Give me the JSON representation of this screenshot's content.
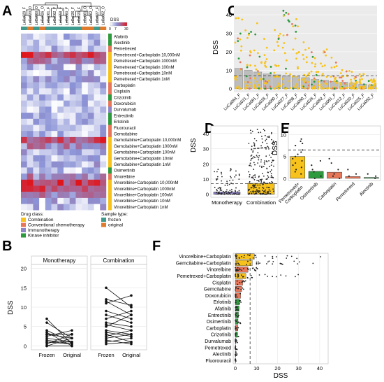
{
  "panel_letters": {
    "a": "A",
    "b": "B",
    "c": "C",
    "d": "D",
    "e": "E",
    "f": "F"
  },
  "colors": {
    "combination": "#f7c21b",
    "conventional": "#e8775a",
    "immunotherapy": "#8f86c8",
    "kinase": "#2e9a3e",
    "frozen": "#3d9a8c",
    "original": "#e07b2e",
    "heat_low": "#ffffff",
    "heat_mid": "#8b93d6",
    "heat_high": "#e0151c",
    "bar_gray": "#bdbdbd",
    "panel_bg": "#ebebeb"
  },
  "panel_a": {
    "samples": [
      "LuCa029_F",
      "LuCa020_O",
      "LuCa060_O",
      "LuCa026_O",
      "LuCa061_F",
      "LuCa062_F",
      "LuCa058_F",
      "LuCa060_F",
      "LuCa026_F",
      "LuCa021_F",
      "LuCa061_O",
      "LuCa062_O",
      "LuCa027_F",
      "LuCa062_O"
    ],
    "sample_types": [
      "frozen",
      "original",
      "frozen",
      "original",
      "frozen",
      "frozen",
      "frozen",
      "frozen",
      "frozen",
      "frozen",
      "original",
      "original",
      "frozen",
      "original"
    ],
    "legend_title": "DSS",
    "legend_ticks": [
      "0",
      "7",
      "30"
    ],
    "drugs": [
      {
        "name": "Afatinib",
        "class": "kinase"
      },
      {
        "name": "Alectinib",
        "class": "kinase"
      },
      {
        "name": "Pemetrexed",
        "class": "conventional"
      },
      {
        "name": "Pemetrexed+Carboplatin 10,000nM",
        "class": "combination"
      },
      {
        "name": "Pemetrexed+Carboplatin 1000nM",
        "class": "combination"
      },
      {
        "name": "Pemetrexed+Carboplatin 100nM",
        "class": "combination"
      },
      {
        "name": "Pemetrexed+Carboplatin 10nM",
        "class": "combination"
      },
      {
        "name": "Pemetrexed+Carboplatin 1nM",
        "class": "combination"
      },
      {
        "name": "Carboplatin",
        "class": "conventional"
      },
      {
        "name": "Cisplatin",
        "class": "conventional"
      },
      {
        "name": "Crizotinib",
        "class": "kinase"
      },
      {
        "name": "Doxorubicin",
        "class": "conventional"
      },
      {
        "name": "Durvalumab",
        "class": "immunotherapy"
      },
      {
        "name": "Entrectinib",
        "class": "kinase"
      },
      {
        "name": "Erlotinib",
        "class": "kinase"
      },
      {
        "name": "Fluorouracil",
        "class": "conventional"
      },
      {
        "name": "Gemcitabine",
        "class": "conventional"
      },
      {
        "name": "Gemcitabine+Carboplatin 10,000nM",
        "class": "combination"
      },
      {
        "name": "Gemcitabine+Carboplatin 1000nM",
        "class": "combination"
      },
      {
        "name": "Gemcitabine+Carboplatin 100nM",
        "class": "combination"
      },
      {
        "name": "Gemcitabine+Carboplatin 10nM",
        "class": "combination"
      },
      {
        "name": "Gemcitabine+Carboplatin 1nM",
        "class": "combination"
      },
      {
        "name": "Osimertinib",
        "class": "kinase"
      },
      {
        "name": "Vinorelbine",
        "class": "conventional"
      },
      {
        "name": "Vinorelbine+Carboplatin 10,000nM",
        "class": "combination"
      },
      {
        "name": "Vinorelbine+Carboplatin 1000nM",
        "class": "combination"
      },
      {
        "name": "Vinorelbine+Carboplatin 100nM",
        "class": "combination"
      },
      {
        "name": "Vinorelbine+Carboplatin 10nM",
        "class": "combination"
      },
      {
        "name": "Vinorelbine+Carboplatin 1nM",
        "class": "combination"
      }
    ],
    "drug_class_title": "Drug class:",
    "drug_classes": [
      {
        "key": "combination",
        "label": "Combination"
      },
      {
        "key": "conventional",
        "label": "Conventional chemotherapy"
      },
      {
        "key": "immunotherapy",
        "label": "Immunotherapy"
      },
      {
        "key": "kinase",
        "label": "Kinase inhibitor"
      }
    ],
    "sample_type_title": "Sample type:",
    "sample_type_labels": [
      {
        "key": "frozen",
        "label": "frozen"
      },
      {
        "key": "original",
        "label": "original"
      }
    ]
  },
  "panel_b": {
    "ylabel": "DSS",
    "ylim": [
      -1,
      21
    ],
    "yticks": [
      0,
      5,
      10,
      15,
      20
    ],
    "xticks": [
      "Frozen",
      "Original"
    ],
    "facets": [
      {
        "label": "Monotherapy",
        "pairs": [
          [
            0,
            0
          ],
          [
            1,
            0.5
          ],
          [
            2,
            1
          ],
          [
            3,
            2
          ],
          [
            0.5,
            3
          ],
          [
            4,
            1
          ],
          [
            2.5,
            4
          ],
          [
            6,
            2
          ],
          [
            1.5,
            0.5
          ],
          [
            3,
            3
          ],
          [
            7,
            0.5
          ],
          [
            0,
            2
          ],
          [
            1,
            1
          ],
          [
            3.5,
            0
          ]
        ]
      },
      {
        "label": "Combination",
        "pairs": [
          [
            15,
            10
          ],
          [
            12,
            10.5
          ],
          [
            11.5,
            8
          ],
          [
            11,
            13
          ],
          [
            9,
            7
          ],
          [
            8,
            6
          ],
          [
            7,
            9
          ],
          [
            6,
            5
          ],
          [
            5.5,
            4
          ],
          [
            5,
            8
          ],
          [
            4,
            3
          ],
          [
            3.5,
            2.5
          ],
          [
            3,
            1
          ],
          [
            2.5,
            4
          ],
          [
            2,
            3
          ],
          [
            1.5,
            0.5
          ],
          [
            1,
            2
          ],
          [
            0.5,
            1
          ]
        ]
      }
    ]
  },
  "panel_c": {
    "ylabel": "DSS",
    "ylim": [
      -2,
      45
    ],
    "yticks": [
      0,
      10,
      20,
      30,
      40
    ],
    "threshold": 7,
    "categories": [
      "LuCa064_F",
      "LuCa021_F",
      "LuCa061_F",
      "LuCa026_F",
      "LuCa060_F",
      "LuCa027_F",
      "LuCa058_F",
      "LuCa060_F",
      "LuCa026_F",
      "LuCa062_F",
      "LuCa061_F",
      "LuCa012_F",
      "LuCa020_F",
      "LuCa025_F",
      "LuCa062_F"
    ],
    "means": [
      11,
      10,
      9,
      8,
      7.5,
      7,
      6.5,
      6,
      5,
      4.5,
      4,
      3.5,
      3,
      2.5,
      2
    ]
  },
  "panel_d": {
    "ylabel": "DSS",
    "ylim": [
      -2,
      45
    ],
    "yticks": [
      0,
      10,
      20,
      30,
      40
    ],
    "threshold": 7,
    "categories": [
      "Monotherapy",
      "Combination"
    ],
    "values": [
      1.5,
      7.2
    ]
  },
  "panel_e": {
    "ylabel": "DSS",
    "ylim": [
      -0.5,
      12
    ],
    "yticks": [
      0,
      5,
      10
    ],
    "threshold": 6.5,
    "categories": [
      "Pemetrexed+\nCarboplatin",
      "Osimertinib",
      "Carboplatin",
      "Pemetrexed",
      "Alectinib"
    ],
    "values": [
      5.0,
      1.6,
      1.4,
      0.4,
      0.2
    ],
    "classes": [
      "combination",
      "kinase",
      "conventional",
      "conventional",
      "kinase"
    ],
    "points": [
      [
        9,
        8.5,
        8,
        7.5,
        6.5,
        6,
        5.5,
        5,
        4.5,
        4,
        3.5,
        3,
        2.5,
        2,
        1.5,
        1
      ],
      [
        4,
        3,
        2,
        1.5,
        0.5,
        0
      ],
      [
        4.5,
        3.5,
        2,
        1,
        0.5,
        0
      ],
      [
        2,
        1,
        0.5
      ],
      [
        1,
        0.5,
        0
      ]
    ]
  },
  "panel_f": {
    "xlabel": "DSS",
    "xlim": [
      -1,
      44
    ],
    "xticks": [
      0,
      10,
      20,
      30,
      40
    ],
    "threshold": 7,
    "categories": [
      "Vinorelbine+Carboplatin",
      "Gemcitabine+Carboplatin",
      "Vinorelbine",
      "Pemetrexed+Carboplatin",
      "Cisplatin",
      "Gemcitabine",
      "Doxorubicin",
      "Erlotinib",
      "Afatinib",
      "Entrectinib",
      "Osimertinib",
      "Carboplatin",
      "Crizotinib",
      "Durvalumab",
      "Pemetrexed",
      "Alectinib",
      "Fluorouracil"
    ],
    "values": [
      9,
      8,
      6,
      5,
      3.5,
      3,
      2.5,
      2,
      1.8,
      1.5,
      1.3,
      1.2,
      1.0,
      0.3,
      0.2,
      0.2,
      0.1
    ],
    "classes": [
      "combination",
      "combination",
      "conventional",
      "combination",
      "conventional",
      "conventional",
      "conventional",
      "kinase",
      "kinase",
      "kinase",
      "kinase",
      "conventional",
      "kinase",
      "immunotherapy",
      "conventional",
      "kinase",
      "conventional"
    ]
  }
}
